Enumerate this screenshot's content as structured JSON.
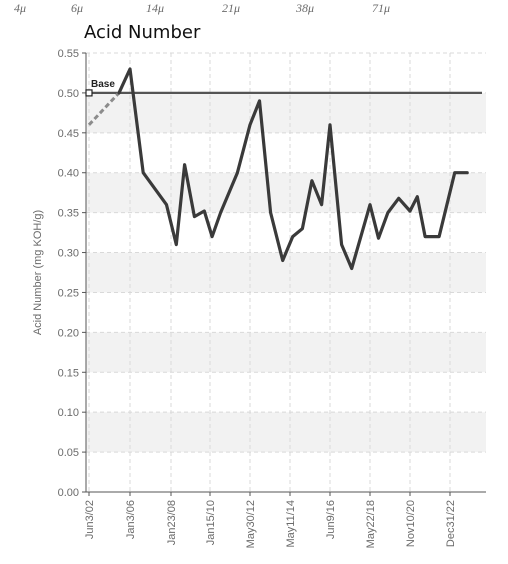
{
  "chart_data": {
    "type": "line",
    "title": "Acid Number",
    "ylabel": "Acid Number (mg KOH/g)",
    "ylim": [
      0,
      0.55
    ],
    "yticks": [
      "0.00",
      "0.05",
      "0.10",
      "0.15",
      "0.20",
      "0.25",
      "0.30",
      "0.35",
      "0.40",
      "0.45",
      "0.50",
      "0.55"
    ],
    "grid": true,
    "top_scale_labels": [
      "4μ",
      "6μ",
      "14μ",
      "21μ",
      "38μ",
      "71μ"
    ],
    "x_tick_labels": [
      "Jun3/02",
      "Jan3/06",
      "Jan23/08",
      "Jan15/10",
      "May30/12",
      "May11/14",
      "Jun9/16",
      "May22/18",
      "Nov10/20",
      "Dec31/22"
    ],
    "x_tick_dates": [
      "2002-06-03",
      "2006-01-03",
      "2008-01-23",
      "2010-01-15",
      "2012-05-30",
      "2014-05-11",
      "2016-06-09",
      "2018-05-22",
      "2020-11-10",
      "2022-12-31"
    ],
    "baseline": {
      "label": "Base",
      "value": 0.5,
      "start": {
        "x": "2002-06-03",
        "y": 0.5
      }
    },
    "dashed_segment": {
      "from": {
        "x": "2002-06-03",
        "y": 0.46
      },
      "to": {
        "x": "2005-01-15",
        "y": 0.5
      }
    },
    "series": [
      {
        "values": [
          {
            "x": "2005-01-15",
            "y": 0.5
          },
          {
            "x": "2006-01-03",
            "y": 0.53
          },
          {
            "x": "2006-09-01",
            "y": 0.4
          },
          {
            "x": "2007-11-01",
            "y": 0.36
          },
          {
            "x": "2008-05-01",
            "y": 0.31
          },
          {
            "x": "2008-10-01",
            "y": 0.41
          },
          {
            "x": "2009-04-01",
            "y": 0.345
          },
          {
            "x": "2009-10-01",
            "y": 0.352
          },
          {
            "x": "2010-03-01",
            "y": 0.32
          },
          {
            "x": "2010-09-01",
            "y": 0.35
          },
          {
            "x": "2011-09-01",
            "y": 0.4
          },
          {
            "x": "2012-05-30",
            "y": 0.46
          },
          {
            "x": "2012-11-15",
            "y": 0.49
          },
          {
            "x": "2013-06-01",
            "y": 0.35
          },
          {
            "x": "2014-01-01",
            "y": 0.29
          },
          {
            "x": "2014-07-01",
            "y": 0.32
          },
          {
            "x": "2015-01-01",
            "y": 0.33
          },
          {
            "x": "2015-07-01",
            "y": 0.39
          },
          {
            "x": "2016-01-01",
            "y": 0.36
          },
          {
            "x": "2016-06-09",
            "y": 0.46
          },
          {
            "x": "2017-01-01",
            "y": 0.31
          },
          {
            "x": "2017-07-01",
            "y": 0.28
          },
          {
            "x": "2018-05-22",
            "y": 0.36
          },
          {
            "x": "2018-12-01",
            "y": 0.318
          },
          {
            "x": "2019-07-01",
            "y": 0.35
          },
          {
            "x": "2020-03-01",
            "y": 0.368
          },
          {
            "x": "2020-11-10",
            "y": 0.352
          },
          {
            "x": "2021-04-01",
            "y": 0.37
          },
          {
            "x": "2021-09-01",
            "y": 0.32
          },
          {
            "x": "2022-06-01",
            "y": 0.32
          },
          {
            "x": "2023-04-01",
            "y": 0.4
          },
          {
            "x": "2023-12-01",
            "y": 0.4
          }
        ]
      }
    ],
    "colors": {
      "line": "#3a3a3a",
      "baseline": "#555555",
      "dashed": "#8c8c8c",
      "band_alt": "#f2f2f2",
      "grid": "#d9d9d9"
    }
  }
}
